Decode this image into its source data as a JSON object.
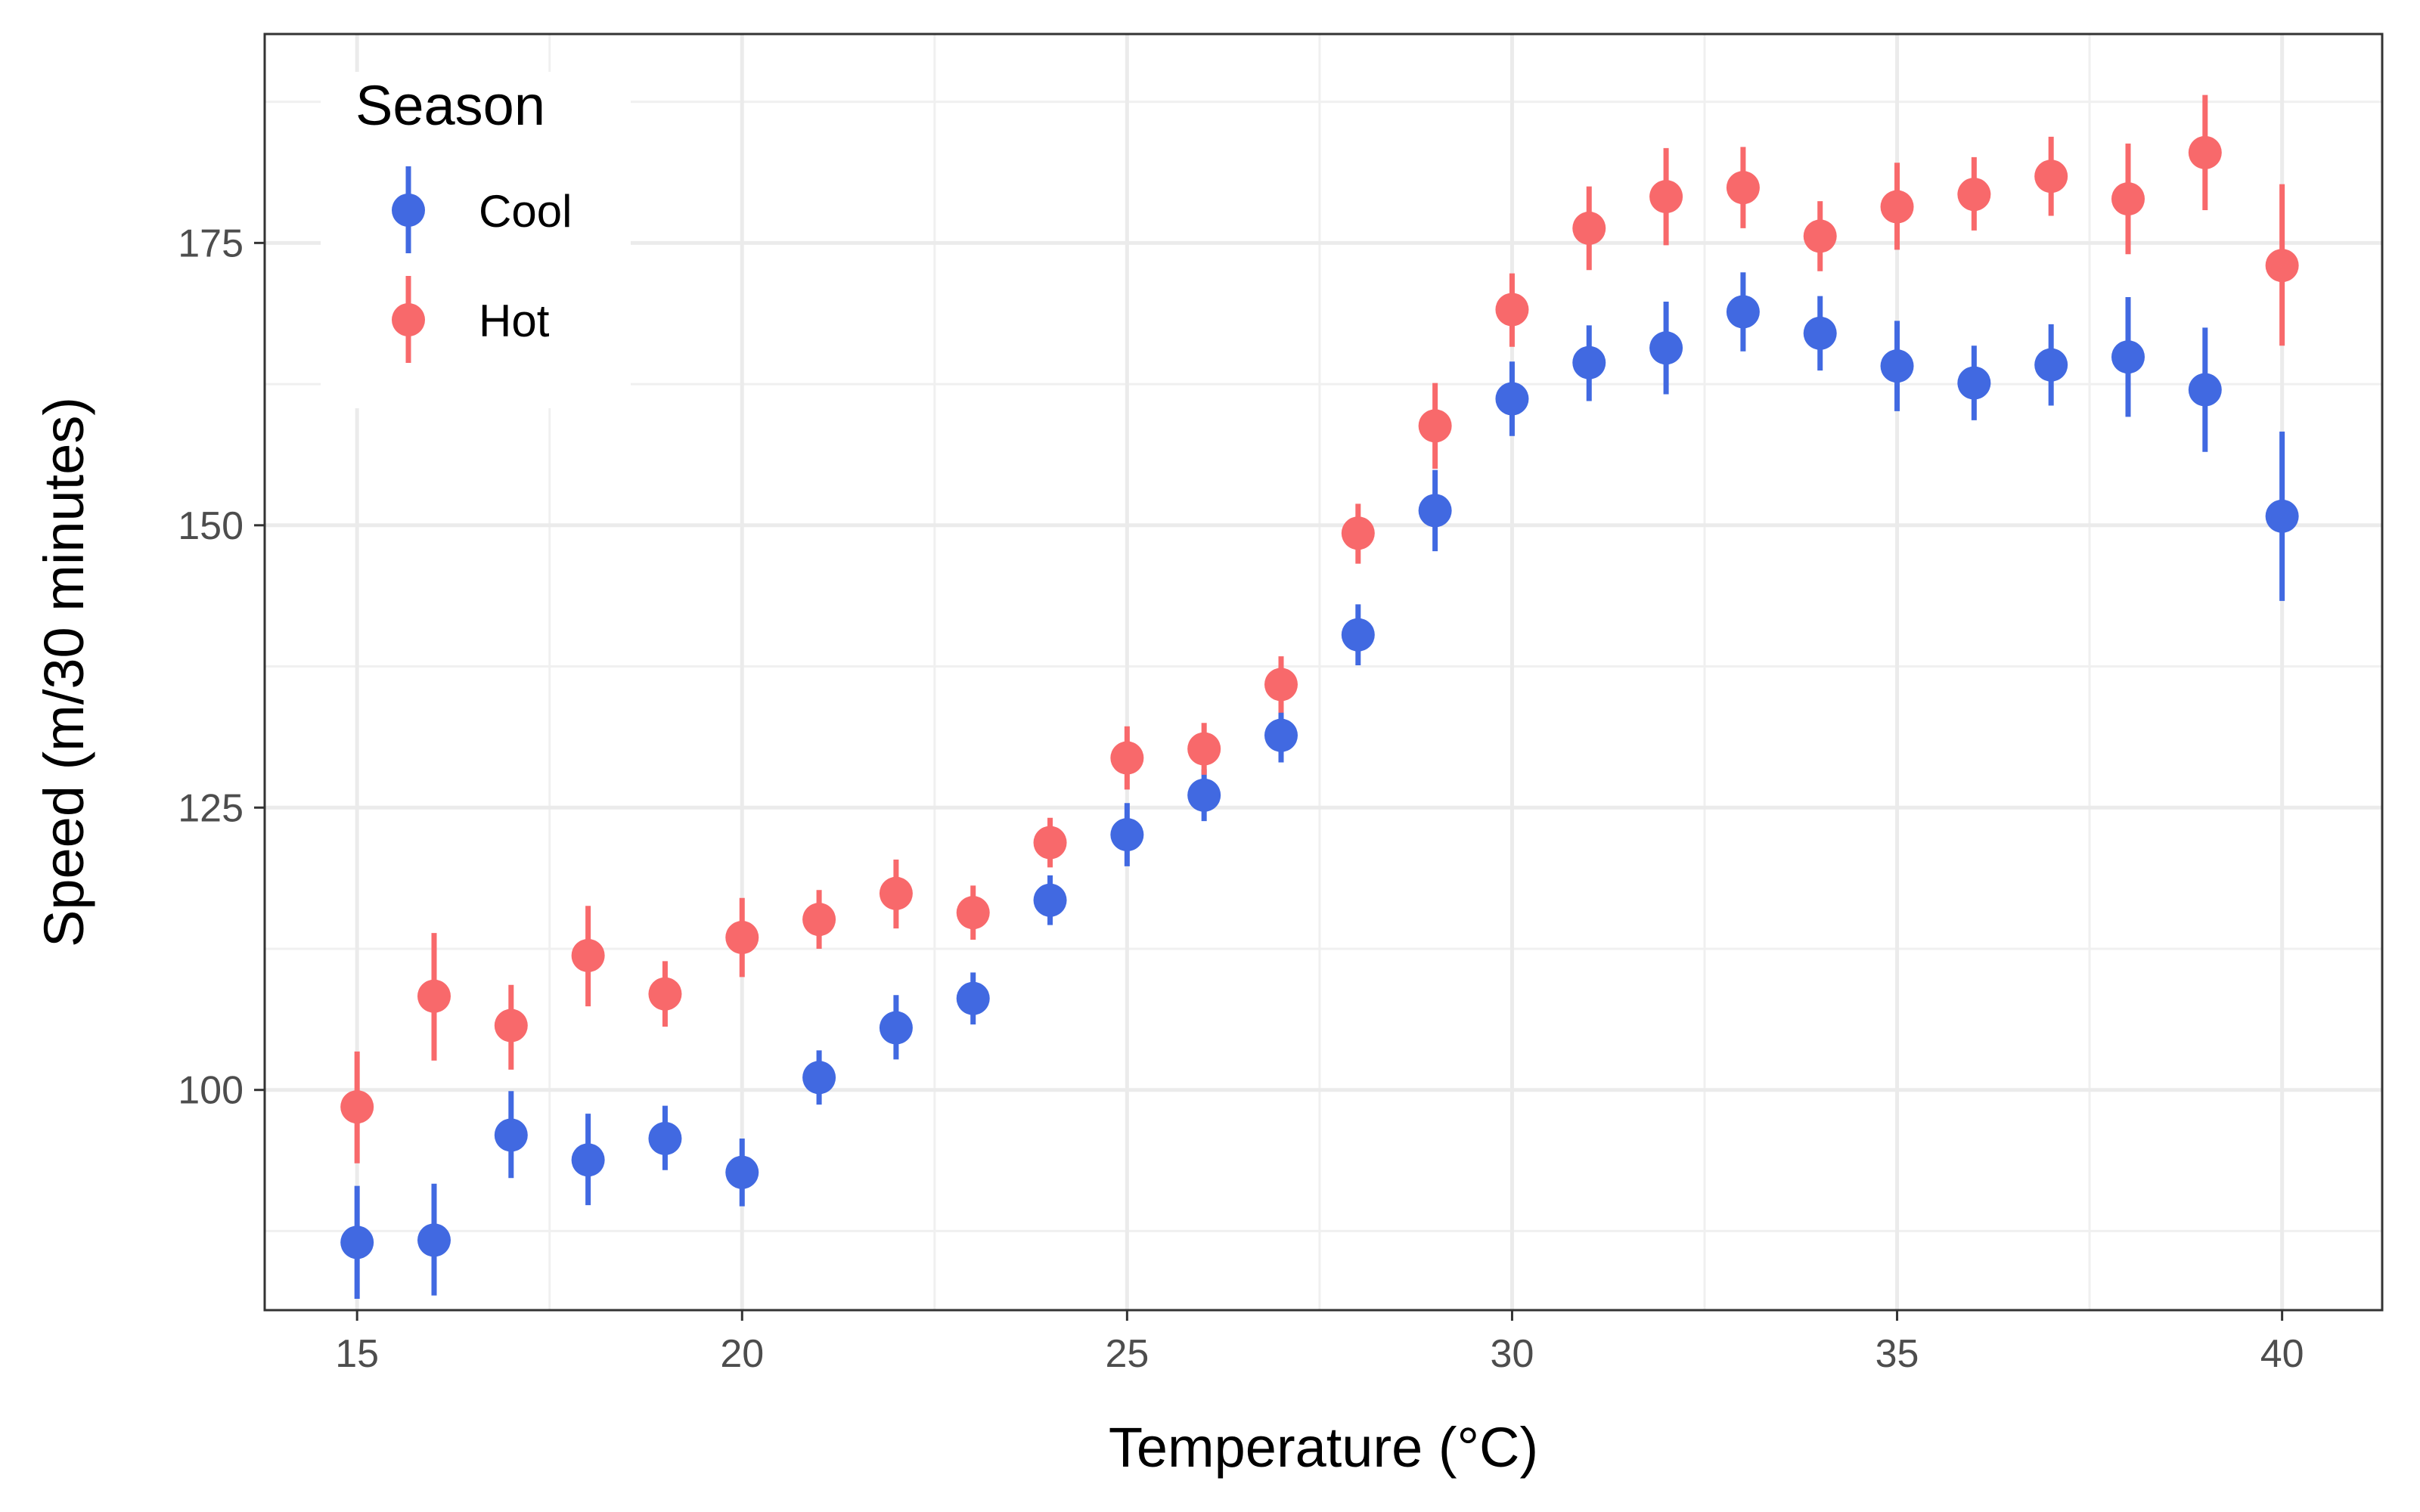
{
  "chart_data": {
    "type": "scatter",
    "xlabel": "Temperature (°C)",
    "ylabel": "Speed (m/30 minutes)",
    "xlim": [
      13.8,
      41.3
    ],
    "ylim": [
      80.5,
      193.5
    ],
    "x_ticks": [
      15,
      20,
      25,
      30,
      35,
      40
    ],
    "y_ticks": [
      100,
      125,
      150,
      175
    ],
    "grid": true,
    "legend": {
      "title": "Season",
      "placement": "top-left"
    },
    "colors": {
      "Cool": "#4169e1",
      "Hot": "#f8696b"
    },
    "x": [
      15,
      16,
      17,
      18,
      19,
      20,
      21,
      22,
      23,
      24,
      25,
      26,
      27,
      28,
      29,
      30,
      31,
      32,
      33,
      34,
      35,
      36,
      37,
      38,
      39,
      40
    ],
    "series": [
      {
        "name": "Cool",
        "y": [
          86.5,
          86.7,
          96.0,
          93.8,
          95.7,
          92.7,
          101.1,
          105.5,
          108.1,
          116.8,
          122.6,
          126.1,
          131.4,
          140.3,
          151.3,
          161.2,
          164.4,
          165.7,
          168.9,
          167.0,
          164.1,
          162.6,
          164.2,
          164.9,
          162.0,
          150.8
        ],
        "lower": [
          81.5,
          81.8,
          92.2,
          89.8,
          92.9,
          89.7,
          98.7,
          102.7,
          105.8,
          114.6,
          119.8,
          123.8,
          129.0,
          137.6,
          147.7,
          157.9,
          161.0,
          161.6,
          165.4,
          163.7,
          160.1,
          159.3,
          160.6,
          159.6,
          156.5,
          143.3
        ],
        "upper": [
          91.5,
          91.7,
          99.9,
          97.9,
          98.6,
          95.7,
          103.5,
          108.4,
          110.4,
          119.0,
          125.4,
          128.4,
          133.8,
          143.0,
          154.9,
          164.5,
          167.7,
          169.8,
          172.4,
          170.3,
          168.1,
          165.9,
          167.8,
          170.2,
          167.5,
          158.3
        ]
      },
      {
        "name": "Hot",
        "y": [
          98.5,
          108.3,
          105.7,
          111.9,
          108.5,
          113.5,
          115.1,
          117.4,
          115.7,
          121.9,
          129.4,
          130.2,
          135.9,
          149.3,
          158.8,
          169.1,
          176.3,
          179.1,
          179.9,
          175.6,
          178.2,
          179.3,
          180.9,
          178.9,
          183.0,
          173.0
        ],
        "lower": [
          93.5,
          102.6,
          101.8,
          107.4,
          105.6,
          110.0,
          112.5,
          114.3,
          113.3,
          119.7,
          126.6,
          127.9,
          133.4,
          146.6,
          155.0,
          165.8,
          172.6,
          174.8,
          176.3,
          172.5,
          174.4,
          176.1,
          177.4,
          174.0,
          177.9,
          165.9
        ],
        "upper": [
          103.4,
          113.9,
          109.3,
          116.3,
          111.4,
          117.0,
          117.7,
          120.4,
          118.1,
          124.1,
          132.2,
          132.5,
          138.4,
          151.9,
          162.6,
          172.3,
          180.0,
          183.4,
          183.5,
          178.7,
          182.1,
          182.6,
          184.4,
          183.8,
          188.1,
          180.2
        ]
      }
    ]
  }
}
